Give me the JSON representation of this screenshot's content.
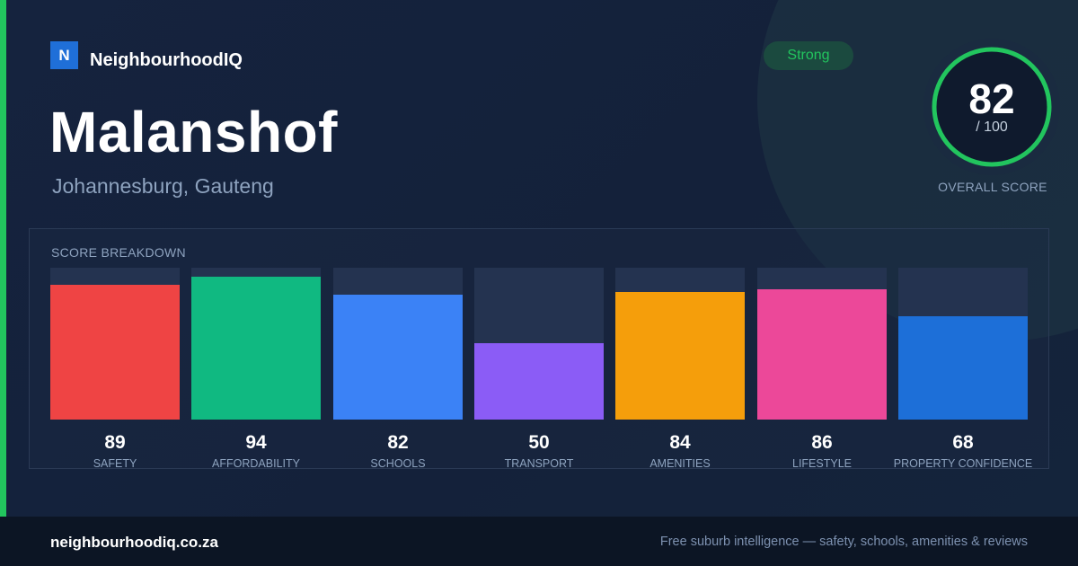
{
  "brand": {
    "logo_letter": "N",
    "name": "NeighbourhoodIQ"
  },
  "suburb": {
    "name": "Malanshof",
    "location": "Johannesburg, Gauteng"
  },
  "rating_badge": "Strong",
  "overall": {
    "score": "82",
    "max_label": "/ 100",
    "score_fraction": 0.82,
    "caption": "OVERALL SCORE"
  },
  "breakdown": {
    "label": "SCORE BREAKDOWN",
    "items": [
      {
        "value": "89",
        "label": "SAFETY",
        "color": "#ef4444",
        "level": 0.89
      },
      {
        "value": "94",
        "label": "AFFORDABILITY",
        "color": "#10b981",
        "level": 0.94
      },
      {
        "value": "82",
        "label": "SCHOOLS",
        "color": "#3b82f6",
        "level": 0.82
      },
      {
        "value": "50",
        "label": "TRANSPORT",
        "color": "#8b5cf6",
        "level": 0.5
      },
      {
        "value": "84",
        "label": "AMENITIES",
        "color": "#f59e0b",
        "level": 0.84
      },
      {
        "value": "86",
        "label": "LIFESTYLE",
        "color": "#ec4899",
        "level": 0.86
      },
      {
        "value": "68",
        "label": "PROPERTY CONFIDENCE",
        "color": "#1d6fd8",
        "level": 0.68
      }
    ]
  },
  "footer": {
    "url": "neighbourhoodiq.co.za",
    "tagline": "Free suburb intelligence — safety, schools, amenities & reviews"
  },
  "colors": {
    "accent": "#22c55e",
    "brand_blue": "#1f6fd8"
  }
}
